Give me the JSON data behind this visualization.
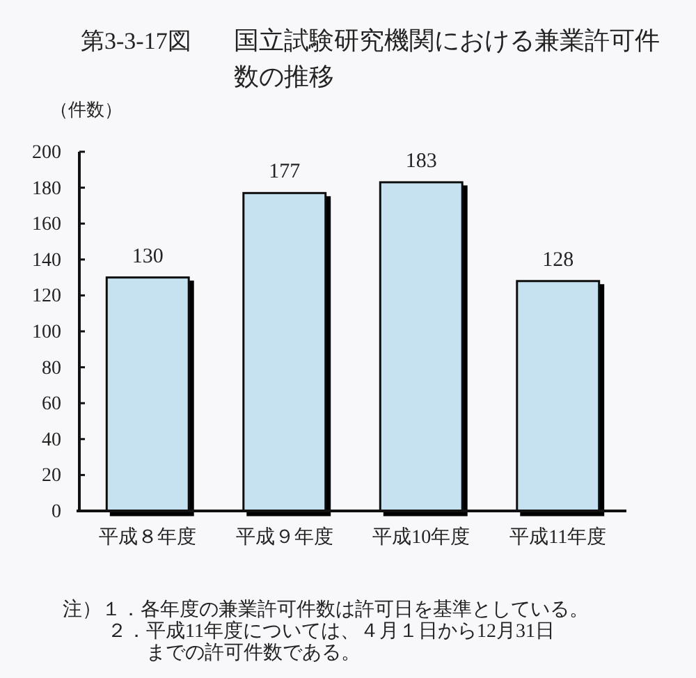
{
  "chart_data": {
    "type": "bar",
    "title": "第3-3-17図　国立試験研究機関における兼業許可件数の推移",
    "ylabel": "（件数）",
    "categories": [
      "平成８年度",
      "平成９年度",
      "平成10年度",
      "平成11年度"
    ],
    "values": [
      130,
      177,
      183,
      128
    ],
    "color": "#c6e1f0",
    "ylim": [
      0,
      200
    ],
    "yticks": [
      0,
      20,
      40,
      60,
      80,
      100,
      120,
      140,
      160,
      180,
      200
    ],
    "data_labels": true,
    "annotations": [
      "注）１．各年度の兼業許可件数は許可日を基準としている。",
      "２．平成11年度については、４月１日から12月31日までの許可件数である。"
    ]
  }
}
